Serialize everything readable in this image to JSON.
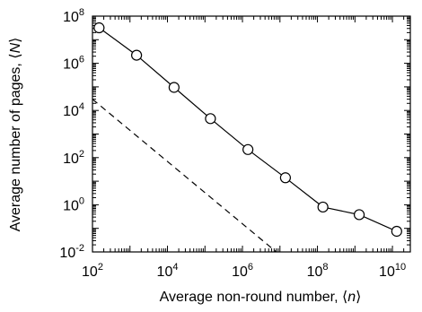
{
  "chart_data": {
    "type": "line",
    "title": "",
    "xlabel": "Average non-round number, ⟨n⟩",
    "ylabel": "Average number of pages, ⟨N⟩",
    "xscale": "log",
    "yscale": "log",
    "xlim": [
      100,
      30000000000
    ],
    "ylim": [
      0.01,
      100000000
    ],
    "xticks": [
      100,
      10000,
      1000000,
      100000000,
      10000000000
    ],
    "xtick_labels": [
      {
        "base": "10",
        "exp": "2"
      },
      {
        "base": "10",
        "exp": "4"
      },
      {
        "base": "10",
        "exp": "6"
      },
      {
        "base": "10",
        "exp": "8"
      },
      {
        "base": "10",
        "exp": "10"
      }
    ],
    "yticks": [
      0.01,
      1,
      100,
      10000,
      1000000,
      100000000
    ],
    "ytick_labels": [
      {
        "base": "10",
        "exp": "-2"
      },
      {
        "base": "10",
        "exp": "0"
      },
      {
        "base": "10",
        "exp": "2"
      },
      {
        "base": "10",
        "exp": "4"
      },
      {
        "base": "10",
        "exp": "6"
      },
      {
        "base": "10",
        "exp": "8"
      }
    ],
    "grid": false,
    "series": [
      {
        "style": "solid line with open circle markers",
        "color": "#000000",
        "x": [
          150,
          1500,
          15000,
          140000,
          1400000,
          14000000,
          140000000,
          1300000000,
          13000000000
        ],
        "y": [
          32000000,
          2200000,
          95000,
          4500,
          220,
          14,
          0.8,
          0.38,
          0.075
        ]
      },
      {
        "style": "dashed line",
        "color": "#000000",
        "x": [
          100,
          8000000
        ],
        "y": [
          30000,
          0.01
        ]
      }
    ]
  }
}
